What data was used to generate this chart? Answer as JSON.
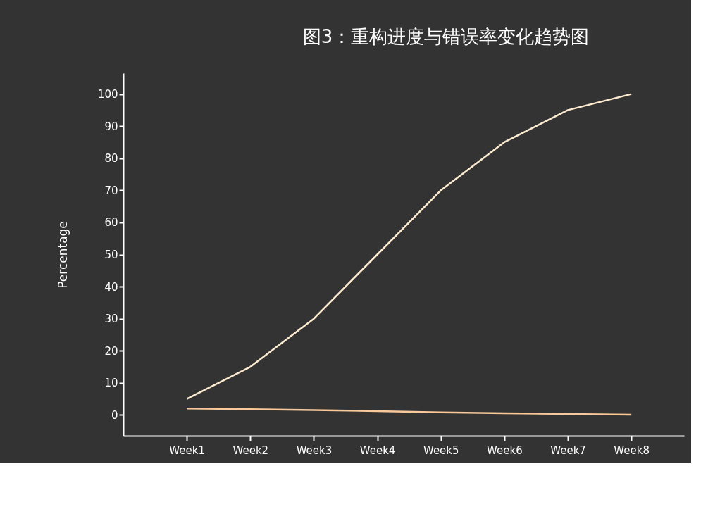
{
  "chart_data": {
    "type": "line",
    "title": "图3：重构进度与错误率变化趋势图",
    "ylabel": "Percentage",
    "categories": [
      "Week1",
      "Week2",
      "Week3",
      "Week4",
      "Week5",
      "Week6",
      "Week7",
      "Week8"
    ],
    "series": [
      {
        "color": "#fdebd0",
        "values": [
          5,
          15,
          30,
          50,
          70,
          85,
          95,
          100
        ]
      },
      {
        "color": "#f9c89b",
        "values": [
          2,
          1.8,
          1.5,
          1.2,
          0.8,
          0.5,
          0.3,
          0.1
        ]
      }
    ],
    "ylim": [
      -6.5,
      106.5
    ],
    "yticks": [
      0,
      10,
      20,
      30,
      40,
      50,
      60,
      70,
      80,
      90,
      100
    ],
    "grid": false,
    "marker": "none",
    "line_style": "solid"
  }
}
